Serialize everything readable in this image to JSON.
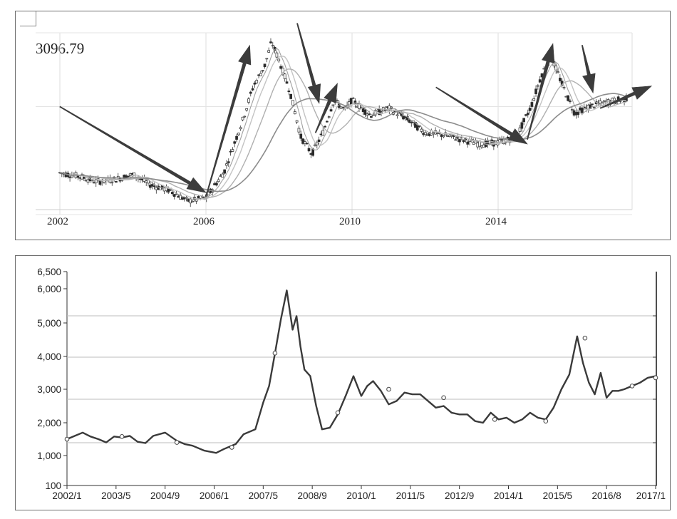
{
  "chart_data": [
    {
      "type": "candlestick",
      "price_label": "3096.79",
      "x_tick_labels": [
        "2002",
        "2006",
        "2010",
        "2014"
      ],
      "x": [
        2002.0,
        2002.5,
        2003.0,
        2003.5,
        2004.0,
        2004.5,
        2005.0,
        2005.5,
        2006.0,
        2006.5,
        2007.0,
        2007.3,
        2007.6,
        2007.8,
        2008.0,
        2008.3,
        2008.6,
        2008.9,
        2009.2,
        2009.5,
        2009.8,
        2010.0,
        2010.5,
        2011.0,
        2011.5,
        2012.0,
        2012.5,
        2013.0,
        2013.5,
        2014.0,
        2014.5,
        2014.9,
        2015.2,
        2015.45,
        2015.8,
        2016.1,
        2016.5,
        2017.0,
        2017.5
      ],
      "values": [
        1530,
        1480,
        1400,
        1430,
        1500,
        1350,
        1280,
        1150,
        1180,
        1550,
        2600,
        3700,
        4500,
        5800,
        4800,
        3500,
        2200,
        1850,
        2300,
        3200,
        2900,
        3200,
        2750,
        2950,
        2650,
        2300,
        2250,
        2150,
        2050,
        2080,
        2200,
        3000,
        4200,
        5000,
        3600,
        2800,
        3000,
        3150,
        3250
      ],
      "annotations": [
        {
          "type": "arrow",
          "label": "decline",
          "from": [
            2002.0,
            3000
          ],
          "to": [
            2006.0,
            1250
          ]
        },
        {
          "type": "arrow",
          "label": "rise",
          "from": [
            2006.0,
            1200
          ],
          "to": [
            2007.2,
            5600
          ]
        },
        {
          "type": "arrow",
          "label": "decline",
          "from": [
            2008.5,
            7000
          ],
          "to": [
            2009.1,
            3100
          ]
        },
        {
          "type": "arrow",
          "label": "rise",
          "from": [
            2009.0,
            2300
          ],
          "to": [
            2009.6,
            3800
          ]
        },
        {
          "type": "arrow",
          "label": "decline",
          "from": [
            2012.3,
            3650
          ],
          "to": [
            2014.8,
            2050
          ]
        },
        {
          "type": "arrow",
          "label": "rise",
          "from": [
            2014.8,
            2150
          ],
          "to": [
            2015.5,
            5700
          ]
        },
        {
          "type": "arrow",
          "label": "decline",
          "from": [
            2016.3,
            5600
          ],
          "to": [
            2016.6,
            3450
          ]
        },
        {
          "type": "arrow",
          "label": "rise",
          "from": [
            2016.8,
            2950
          ],
          "to": [
            2018.2,
            3700
          ]
        }
      ]
    },
    {
      "type": "line",
      "x_categories": [
        "2002/1",
        "2003/5",
        "2004/9",
        "2006/1",
        "2007/5",
        "2008/9",
        "2010/1",
        "2011/5",
        "2012/9",
        "2014/1",
        "2015/5",
        "2016/8",
        "2017/1"
      ],
      "y_ticks": [
        100,
        1000,
        2000,
        3000,
        4000,
        5000,
        6000,
        6500
      ],
      "y_tick_labels": [
        "100",
        "1,000",
        "2,000",
        "3,000",
        "4,000",
        "5,000",
        "6,000",
        "6,500"
      ],
      "ylim": [
        100,
        6500
      ],
      "xlim": [
        2002.0,
        2017.0
      ],
      "x": [
        2002.0,
        2002.2,
        2002.4,
        2002.6,
        2002.8,
        2003.0,
        2003.2,
        2003.4,
        2003.6,
        2003.8,
        2004.0,
        2004.2,
        2004.5,
        2004.8,
        2005.0,
        2005.2,
        2005.5,
        2005.8,
        2006.0,
        2006.3,
        2006.5,
        2006.8,
        2007.0,
        2007.15,
        2007.3,
        2007.45,
        2007.6,
        2007.75,
        2007.85,
        2007.95,
        2008.05,
        2008.2,
        2008.35,
        2008.5,
        2008.7,
        2008.9,
        2009.1,
        2009.3,
        2009.5,
        2009.65,
        2009.8,
        2010.0,
        2010.2,
        2010.4,
        2010.6,
        2010.8,
        2011.0,
        2011.2,
        2011.4,
        2011.6,
        2011.8,
        2012.0,
        2012.2,
        2012.4,
        2012.6,
        2012.8,
        2013.0,
        2013.2,
        2013.4,
        2013.6,
        2013.8,
        2014.0,
        2014.2,
        2014.4,
        2014.6,
        2014.8,
        2015.0,
        2015.15,
        2015.3,
        2015.45,
        2015.6,
        2015.75,
        2015.9,
        2016.05,
        2016.2,
        2016.4,
        2016.6,
        2016.8,
        2017.0
      ],
      "values": [
        1500,
        1600,
        1700,
        1580,
        1500,
        1400,
        1580,
        1550,
        1600,
        1420,
        1380,
        1600,
        1700,
        1450,
        1350,
        1300,
        1150,
        1080,
        1200,
        1350,
        1650,
        1800,
        2600,
        3100,
        4100,
        5100,
        5950,
        4800,
        5200,
        4300,
        3600,
        3400,
        2500,
        1800,
        1850,
        2250,
        2800,
        3400,
        2800,
        3100,
        3250,
        2950,
        2550,
        2650,
        2900,
        2850,
        2850,
        2650,
        2450,
        2500,
        2300,
        2250,
        2250,
        2050,
        2000,
        2300,
        2100,
        2150,
        2000,
        2100,
        2300,
        2150,
        2100,
        2450,
        3000,
        3450,
        4600,
        3800,
        3200,
        2850,
        3500,
        2750,
        2950,
        2950,
        3000,
        3100,
        3200,
        3350,
        3400
      ],
      "markers": [
        {
          "x": 2002.0,
          "y": 1500
        },
        {
          "x": 2003.4,
          "y": 1580
        },
        {
          "x": 2004.8,
          "y": 1400
        },
        {
          "x": 2006.2,
          "y": 1250
        },
        {
          "x": 2007.3,
          "y": 4100
        },
        {
          "x": 2008.9,
          "y": 2300
        },
        {
          "x": 2010.2,
          "y": 3000
        },
        {
          "x": 2011.6,
          "y": 2750
        },
        {
          "x": 2012.9,
          "y": 2100
        },
        {
          "x": 2014.2,
          "y": 2050
        },
        {
          "x": 2015.2,
          "y": 4550
        },
        {
          "x": 2016.4,
          "y": 3100
        },
        {
          "x": 2017.0,
          "y": 3350
        }
      ],
      "grid": true
    }
  ]
}
